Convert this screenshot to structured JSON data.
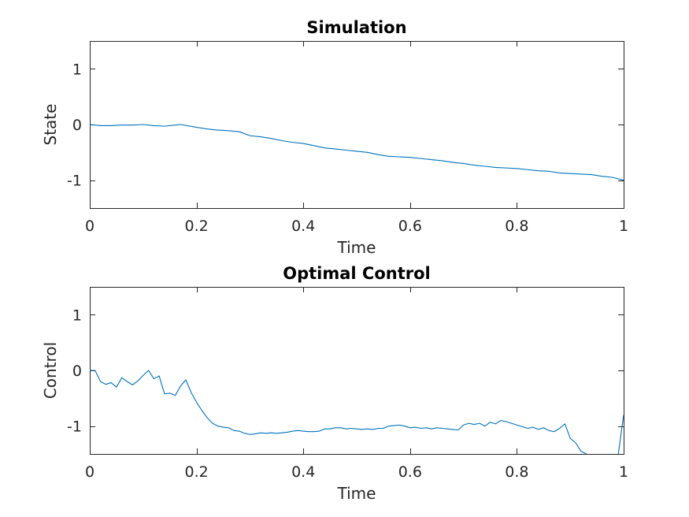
{
  "chart_data": [
    {
      "type": "line",
      "title": "Simulation",
      "xlabel": "Time",
      "ylabel": "State",
      "xlim": [
        0,
        1
      ],
      "ylim": [
        -1.5,
        1.5
      ],
      "xticks": [
        0,
        0.2,
        0.4,
        0.6,
        0.8,
        1
      ],
      "xtick_labels": [
        "0",
        "0.2",
        "0.4",
        "0.6",
        "0.8",
        "1"
      ],
      "yticks": [
        1,
        0,
        -1
      ],
      "ytick_labels": [
        "1",
        "0",
        "-1"
      ],
      "grid": false,
      "color": "#0072BD",
      "x": [
        0.0,
        0.02,
        0.04,
        0.06,
        0.08,
        0.1,
        0.12,
        0.14,
        0.16,
        0.17,
        0.2,
        0.22,
        0.24,
        0.26,
        0.28,
        0.3,
        0.32,
        0.34,
        0.36,
        0.38,
        0.4,
        0.42,
        0.44,
        0.46,
        0.48,
        0.5,
        0.52,
        0.54,
        0.56,
        0.58,
        0.6,
        0.62,
        0.64,
        0.66,
        0.68,
        0.7,
        0.72,
        0.74,
        0.76,
        0.78,
        0.8,
        0.82,
        0.84,
        0.86,
        0.88,
        0.9,
        0.92,
        0.94,
        0.96,
        0.98,
        1.0
      ],
      "values": [
        0.0,
        -0.02,
        -0.02,
        -0.01,
        -0.01,
        0.0,
        -0.02,
        -0.03,
        -0.01,
        0.0,
        -0.05,
        -0.08,
        -0.1,
        -0.11,
        -0.13,
        -0.2,
        -0.22,
        -0.25,
        -0.29,
        -0.32,
        -0.34,
        -0.38,
        -0.42,
        -0.44,
        -0.46,
        -0.48,
        -0.5,
        -0.54,
        -0.57,
        -0.58,
        -0.59,
        -0.61,
        -0.63,
        -0.65,
        -0.68,
        -0.7,
        -0.73,
        -0.75,
        -0.77,
        -0.78,
        -0.79,
        -0.81,
        -0.83,
        -0.84,
        -0.87,
        -0.88,
        -0.89,
        -0.9,
        -0.93,
        -0.95,
        -1.0
      ]
    },
    {
      "type": "line",
      "title": "Optimal Control",
      "xlabel": "Time",
      "ylabel": "Control",
      "xlim": [
        0,
        1
      ],
      "ylim": [
        -1.5,
        1.5
      ],
      "xticks": [
        0,
        0.2,
        0.4,
        0.6,
        0.8,
        1
      ],
      "xtick_labels": [
        "0",
        "0.2",
        "0.4",
        "0.6",
        "0.8",
        "1"
      ],
      "yticks": [
        1,
        0,
        -1
      ],
      "ytick_labels": [
        "1",
        "0",
        "-1"
      ],
      "grid": false,
      "color": "#0072BD",
      "x": [
        0.0,
        0.01,
        0.02,
        0.03,
        0.04,
        0.05,
        0.06,
        0.07,
        0.08,
        0.09,
        0.1,
        0.11,
        0.12,
        0.13,
        0.14,
        0.15,
        0.16,
        0.17,
        0.18,
        0.19,
        0.2,
        0.21,
        0.22,
        0.23,
        0.24,
        0.25,
        0.26,
        0.27,
        0.28,
        0.29,
        0.3,
        0.31,
        0.32,
        0.33,
        0.34,
        0.35,
        0.36,
        0.37,
        0.38,
        0.39,
        0.4,
        0.41,
        0.42,
        0.43,
        0.44,
        0.45,
        0.46,
        0.47,
        0.48,
        0.49,
        0.5,
        0.51,
        0.52,
        0.53,
        0.54,
        0.55,
        0.56,
        0.57,
        0.58,
        0.59,
        0.6,
        0.61,
        0.62,
        0.63,
        0.64,
        0.65,
        0.66,
        0.67,
        0.68,
        0.69,
        0.7,
        0.71,
        0.72,
        0.73,
        0.74,
        0.75,
        0.76,
        0.77,
        0.78,
        0.79,
        0.8,
        0.81,
        0.82,
        0.83,
        0.84,
        0.85,
        0.86,
        0.87,
        0.88,
        0.89,
        0.9,
        0.91,
        0.92,
        0.93,
        0.94,
        0.95,
        0.96,
        0.97,
        0.98,
        0.99,
        1.0
      ],
      "values": [
        0.0,
        0.0,
        -0.2,
        -0.25,
        -0.22,
        -0.3,
        -0.13,
        -0.2,
        -0.26,
        -0.19,
        -0.09,
        0.0,
        -0.15,
        -0.1,
        -0.42,
        -0.41,
        -0.45,
        -0.28,
        -0.17,
        -0.4,
        -0.57,
        -0.72,
        -0.85,
        -0.95,
        -1.0,
        -1.02,
        -1.03,
        -1.08,
        -1.09,
        -1.13,
        -1.15,
        -1.14,
        -1.12,
        -1.13,
        -1.12,
        -1.13,
        -1.12,
        -1.11,
        -1.09,
        -1.08,
        -1.09,
        -1.1,
        -1.1,
        -1.09,
        -1.05,
        -1.05,
        -1.03,
        -1.03,
        -1.05,
        -1.04,
        -1.05,
        -1.06,
        -1.05,
        -1.06,
        -1.04,
        -1.04,
        -1.0,
        -0.99,
        -0.98,
        -1.0,
        -1.03,
        -1.02,
        -1.04,
        -1.03,
        -1.05,
        -1.03,
        -1.04,
        -1.05,
        -1.06,
        -1.07,
        -0.98,
        -0.95,
        -0.97,
        -0.95,
        -1.0,
        -0.93,
        -0.96,
        -0.9,
        -0.92,
        -0.95,
        -0.98,
        -1.01,
        -1.04,
        -1.02,
        -1.06,
        -1.03,
        -1.08,
        -1.1,
        -1.04,
        -0.96,
        -1.22,
        -1.3,
        -1.45,
        -1.5,
        -1.8,
        -1.9,
        -2.0,
        -2.0,
        -2.0,
        -1.5,
        -0.8
      ]
    }
  ]
}
